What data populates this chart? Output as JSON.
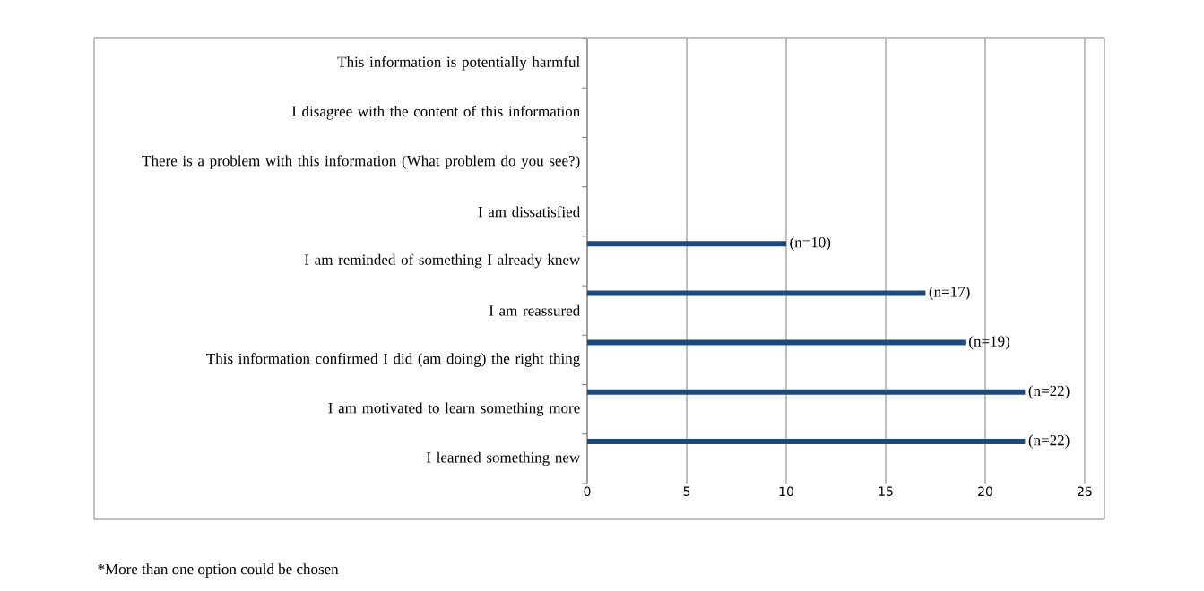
{
  "chart_data": {
    "type": "bar",
    "orientation": "horizontal",
    "categories": [
      "This information is potentially harmful",
      "I disagree with the content of this information",
      "There is a problem with this information (What problem do you see?)",
      "I am dissatisfied",
      "I am reminded of something I already knew",
      "I am reassured",
      "This information confirmed I did (am doing) the right thing",
      "I am motivated to learn something more",
      "I learned something new"
    ],
    "values": [
      0,
      0,
      0,
      0,
      10,
      17,
      19,
      22,
      22
    ],
    "value_labels": [
      null,
      null,
      null,
      null,
      "(n=10)",
      "(n=17)",
      "(n=19)",
      "(n=22)",
      "(n=22)"
    ],
    "color": "#1f497d",
    "xlim": [
      0,
      25
    ],
    "xticks": [
      0,
      5,
      10,
      15,
      20,
      25
    ],
    "grid": "x",
    "annotations": [
      "*More than one option could be chosen"
    ]
  }
}
